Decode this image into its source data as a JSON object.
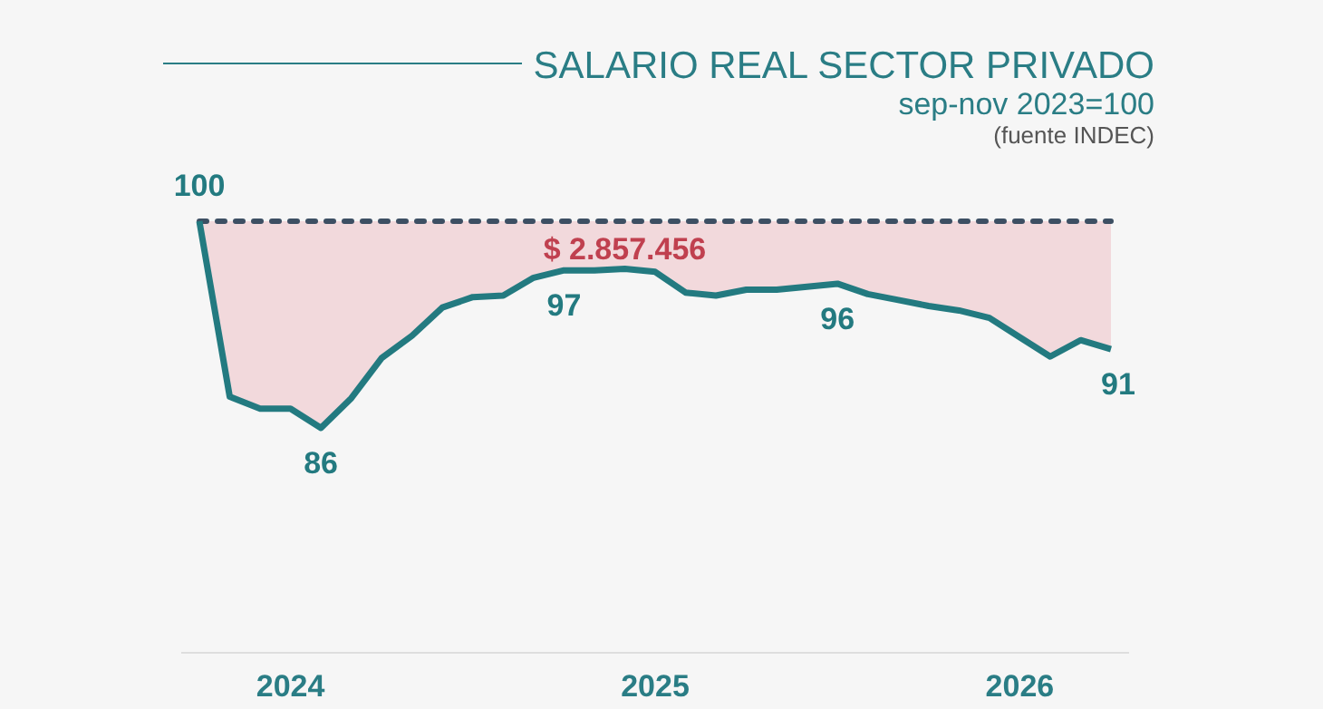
{
  "chart_data": {
    "type": "line",
    "title": "SALARIO REAL SECTOR PRIVADO",
    "subtitle": "sep-nov 2023=100",
    "annotations": [
      "(fuente INDEC)",
      "$ 2.857.456"
    ],
    "categories": [
      null,
      null,
      null,
      "2024",
      null,
      null,
      null,
      null,
      null,
      null,
      null,
      null,
      null,
      null,
      null,
      "2025",
      null,
      null,
      null,
      null,
      null,
      null,
      null,
      null,
      null,
      null,
      null,
      "2026",
      null,
      null,
      null
    ],
    "series": [
      {
        "color": "#237a80",
        "values": [
          100,
          88.2,
          87.4,
          87.4,
          86.1,
          88.1,
          90.8,
          92.3,
          94.2,
          94.9,
          95.0,
          96.2,
          96.7,
          96.7,
          96.8,
          96.6,
          95.2,
          95.0,
          95.4,
          95.4,
          95.6,
          95.8,
          95.1,
          94.7,
          94.3,
          94.0,
          93.5,
          92.2,
          90.9,
          92.0,
          91.4
        ],
        "lower": [
          100,
          88.2,
          87.4,
          87.4,
          86.1,
          88.1,
          90.8,
          92.3,
          94.2,
          94.9,
          95.0,
          96.2,
          96.7,
          96.7,
          96.8,
          96.6,
          95.2,
          95.0,
          95.4,
          95.4,
          95.6,
          95.8,
          95.1,
          94.7,
          94.3,
          94.0,
          93.5,
          92.2,
          90.9,
          92.0,
          91.4
        ],
        "upper": [
          100,
          100,
          100,
          100,
          100,
          100,
          100,
          100,
          100,
          100,
          100,
          100,
          100,
          100,
          100,
          100,
          100,
          100,
          100,
          100,
          100,
          100,
          100,
          100,
          100,
          100,
          100,
          100,
          100,
          100,
          100
        ],
        "value_labels": [
          "100",
          null,
          null,
          null,
          "86",
          null,
          null,
          null,
          null,
          null,
          null,
          null,
          "97",
          null,
          null,
          null,
          null,
          null,
          null,
          null,
          null,
          "96",
          null,
          null,
          null,
          null,
          null,
          null,
          null,
          null,
          "91"
        ]
      }
    ],
    "tick_labels": "x",
    "grid": false,
    "marker": "none",
    "line_style": "solid",
    "ref_lines": [
      {
        "axis": "y",
        "value": 100,
        "color": "#3d4f63",
        "line_style": "dotted"
      }
    ]
  }
}
